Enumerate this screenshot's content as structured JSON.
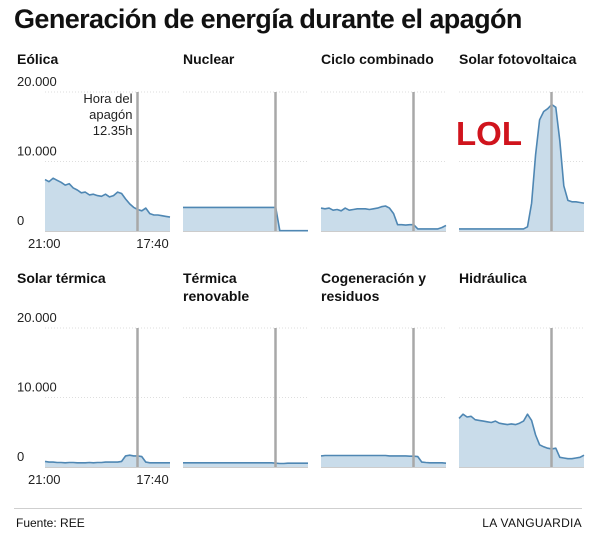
{
  "title": "Generación de energía durante el apagón",
  "source": "Fuente: REE",
  "brand": "LA VANGUARDIA",
  "stamp_text": "LOL",
  "colors": {
    "area_fill": "#c9dcea",
    "line": "#4f87b3",
    "marker": "#a8a8a8",
    "grid": "#dedede",
    "stamp": "#d0141d"
  },
  "chart_data": {
    "type": "area",
    "ylim": [
      0,
      20000
    ],
    "y_ticks": [
      "20.000",
      "10.000",
      "0"
    ],
    "y_tick_values": [
      20000,
      10000,
      0
    ],
    "x_ticks": [
      "21:00",
      "17:40"
    ],
    "marker_label": [
      "Hora del",
      "apagón",
      "12.35h"
    ],
    "marker_x": 0.74,
    "panels": [
      {
        "name": [
          "Eólica"
        ],
        "values": [
          7400,
          7100,
          7600,
          7300,
          7000,
          6600,
          6800,
          6200,
          5900,
          5500,
          5600,
          5200,
          5300,
          5100,
          5000,
          5300,
          4900,
          5100,
          5600,
          5400,
          4600,
          3900,
          3400,
          3100,
          2900,
          3300,
          2500,
          2300,
          2300,
          2200,
          2100,
          2000
        ]
      },
      {
        "name": [
          "Nuclear"
        ],
        "values": [
          3400,
          3400,
          3400,
          3400,
          3400,
          3400,
          3400,
          3400,
          3400,
          3400,
          3400,
          3400,
          3400,
          3400,
          3400,
          3400,
          3400,
          3400,
          3400,
          3400,
          3400,
          3400,
          3400,
          3400,
          50,
          50,
          50,
          50,
          50,
          50,
          50,
          50
        ]
      },
      {
        "name": [
          "Ciclo combinado"
        ],
        "values": [
          3300,
          3200,
          3300,
          3000,
          3100,
          2900,
          3300,
          3000,
          3100,
          3200,
          3200,
          3200,
          3100,
          3200,
          3300,
          3500,
          3600,
          3300,
          2500,
          900,
          900,
          850,
          900,
          900,
          300,
          300,
          300,
          300,
          300,
          300,
          500,
          800
        ]
      },
      {
        "name": [
          "Solar fotovoltaica"
        ],
        "values": [
          300,
          300,
          300,
          300,
          300,
          300,
          300,
          300,
          300,
          300,
          300,
          300,
          300,
          300,
          300,
          300,
          300,
          600,
          4000,
          11000,
          16000,
          17200,
          17600,
          18200,
          17800,
          13000,
          6500,
          4400,
          4200,
          4200,
          4100,
          4000
        ]
      },
      {
        "name": [
          "Solar térmica"
        ],
        "values": [
          800,
          700,
          700,
          650,
          650,
          600,
          650,
          650,
          600,
          600,
          600,
          650,
          600,
          650,
          650,
          700,
          700,
          700,
          700,
          800,
          1600,
          1700,
          1600,
          1600,
          1500,
          700,
          600,
          600,
          600,
          600,
          600,
          600
        ]
      },
      {
        "name": [
          "Térmica",
          "renovable"
        ],
        "values": [
          600,
          600,
          600,
          600,
          600,
          600,
          600,
          600,
          600,
          600,
          600,
          600,
          600,
          600,
          600,
          600,
          600,
          600,
          600,
          600,
          600,
          600,
          600,
          550,
          500,
          500,
          550,
          550,
          550,
          550,
          550,
          550
        ]
      },
      {
        "name": [
          "Cogeneración y",
          "residuos"
        ],
        "values": [
          1600,
          1650,
          1650,
          1650,
          1650,
          1650,
          1650,
          1650,
          1650,
          1650,
          1650,
          1650,
          1650,
          1650,
          1650,
          1650,
          1650,
          1600,
          1600,
          1600,
          1600,
          1600,
          1550,
          1550,
          1500,
          700,
          650,
          600,
          600,
          600,
          600,
          550
        ]
      },
      {
        "name": [
          "Hidráulica"
        ],
        "values": [
          7000,
          7600,
          7200,
          7300,
          6800,
          6700,
          6600,
          6500,
          6400,
          6600,
          6300,
          6200,
          6100,
          6200,
          6100,
          6300,
          6600,
          7600,
          6700,
          4600,
          3200,
          2900,
          2700,
          2600,
          2700,
          1400,
          1300,
          1200,
          1200,
          1300,
          1400,
          1700
        ]
      }
    ]
  }
}
